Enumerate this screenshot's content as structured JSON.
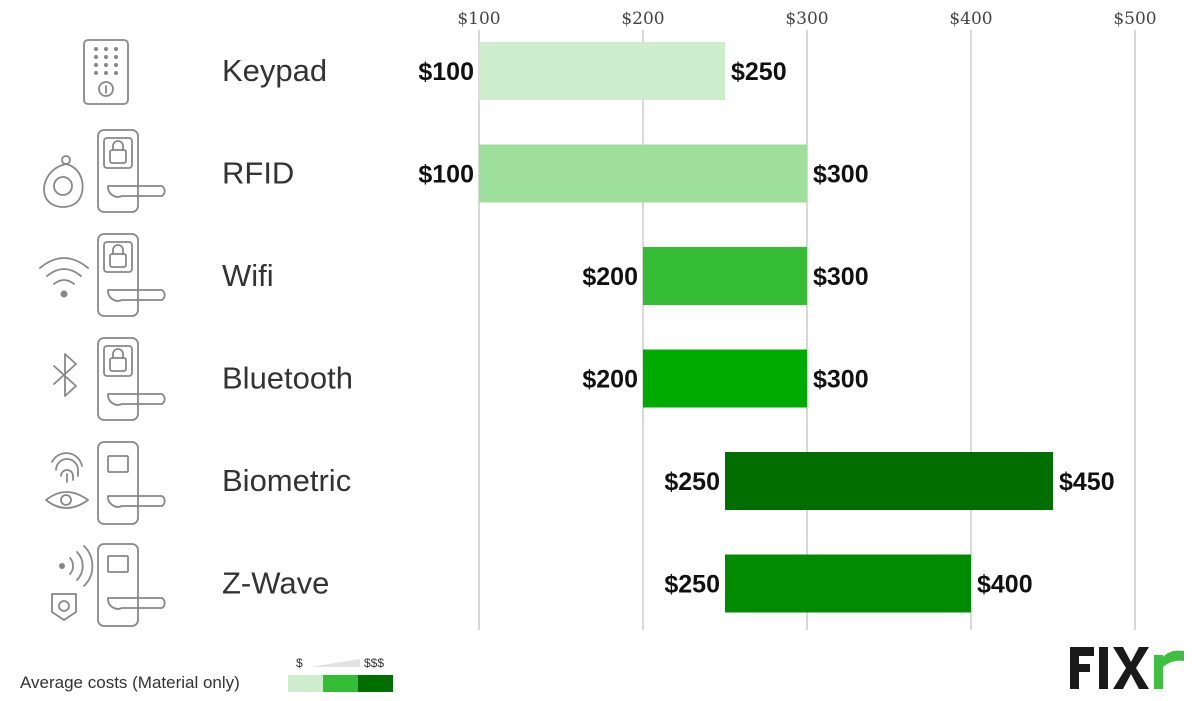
{
  "chart_data": {
    "type": "bar",
    "orientation": "horizontal-range",
    "title": "",
    "xlabel": "",
    "ylabel": "",
    "xlim": [
      100,
      500
    ],
    "x_ticks": [
      "$100",
      "$200",
      "$300",
      "$400",
      "$500"
    ],
    "x_tick_values": [
      100,
      200,
      300,
      400,
      500
    ],
    "grid": true,
    "categories": [
      "Keypad",
      "RFID",
      "Wifi",
      "Bluetooth",
      "Biometric",
      "Z-Wave"
    ],
    "series": [
      {
        "low": [
          100,
          100,
          200,
          200,
          250,
          250
        ],
        "high": [
          250,
          300,
          300,
          300,
          450,
          400
        ],
        "low_labels": [
          "$100",
          "$100",
          "$200",
          "$200",
          "$250",
          "$250"
        ],
        "high_labels": [
          "$250",
          "$300",
          "$300",
          "$300",
          "$450",
          "$400"
        ],
        "colors": [
          "#cdeecc",
          "#9ddf9b",
          "#35bd36",
          "#00ab00",
          "#006f00",
          "#008b00"
        ]
      }
    ],
    "icons": [
      "keypad-lock-icon",
      "rfid-lock-icon",
      "wifi-lock-icon",
      "bluetooth-lock-icon",
      "biometric-lock-icon",
      "zwave-lock-icon"
    ]
  },
  "legend": {
    "label": "Average costs (Material only)",
    "low_mark": "$",
    "high_mark": "$$$",
    "colors": [
      "#cdeecc",
      "#35bd36",
      "#006f00"
    ]
  },
  "brand": {
    "logo_text": "FIXR",
    "dark_color": "#1a1a1a",
    "accent_color": "#3fbf3f"
  }
}
